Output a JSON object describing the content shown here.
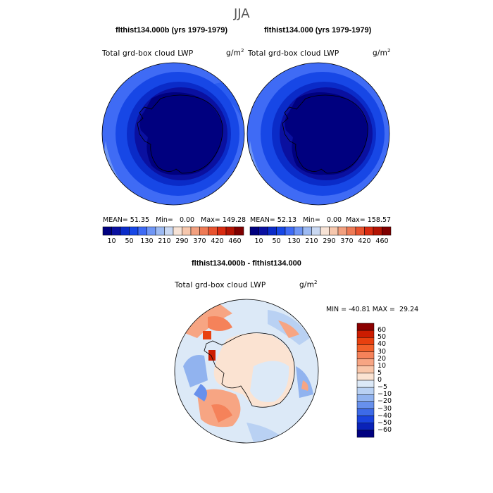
{
  "season": "JJA",
  "panels": [
    {
      "case_title": "flthist134.000b (yrs 1979-1979)",
      "variable": "Total grd-box cloud LWP",
      "units": "g/m",
      "units_sup": "2",
      "mean_label": "MEAN=",
      "mean": "51.35",
      "min_label": "Min=",
      "min": "0.00",
      "max_label": "Max=",
      "max": "149.28"
    },
    {
      "case_title": "flthist134.000 (yrs 1979-1979)",
      "variable": "Total grd-box cloud LWP",
      "units": "g/m",
      "units_sup": "2",
      "mean_label": "MEAN=",
      "mean": "52.13",
      "min_label": "Min=",
      "min": "0.00",
      "max_label": "Max=",
      "max": "158.57"
    }
  ],
  "colorbar_top": {
    "colors": [
      "#00007f",
      "#0a10a0",
      "#0a2bc8",
      "#1747e6",
      "#3f6bf5",
      "#6f96f5",
      "#9dbaf2",
      "#c9d8f2",
      "#f7e3d6",
      "#f6c7ad",
      "#f2a07f",
      "#ee7a55",
      "#e8532f",
      "#d92b10",
      "#b31303",
      "#7f0000"
    ],
    "labels": [
      "10",
      "50",
      "130",
      "210",
      "290",
      "370",
      "420",
      "460"
    ]
  },
  "diff": {
    "title": "flthist134.000b - flthist134.000",
    "variable": "Total grd-box cloud LWP",
    "units": "g/m",
    "units_sup": "2",
    "min_label": "MIN =",
    "min": "-40.81",
    "max_label": "MAX =",
    "max": "29.24",
    "colorbar": {
      "colors": [
        "#8b0000",
        "#cc1c00",
        "#e8400f",
        "#f2602a",
        "#f5825a",
        "#f7a583",
        "#f9c6a9",
        "#fbe3d2",
        "#dce9f7",
        "#b9d1f3",
        "#91b3ef",
        "#6790ec",
        "#3d6ae8",
        "#1a43de",
        "#0a22b8",
        "#000080"
      ],
      "labels": [
        "60",
        "50",
        "40",
        "30",
        "20",
        "10",
        "5",
        "0",
        "−5",
        "−10",
        "−20",
        "−30",
        "−40",
        "−50",
        "−60"
      ]
    }
  }
}
